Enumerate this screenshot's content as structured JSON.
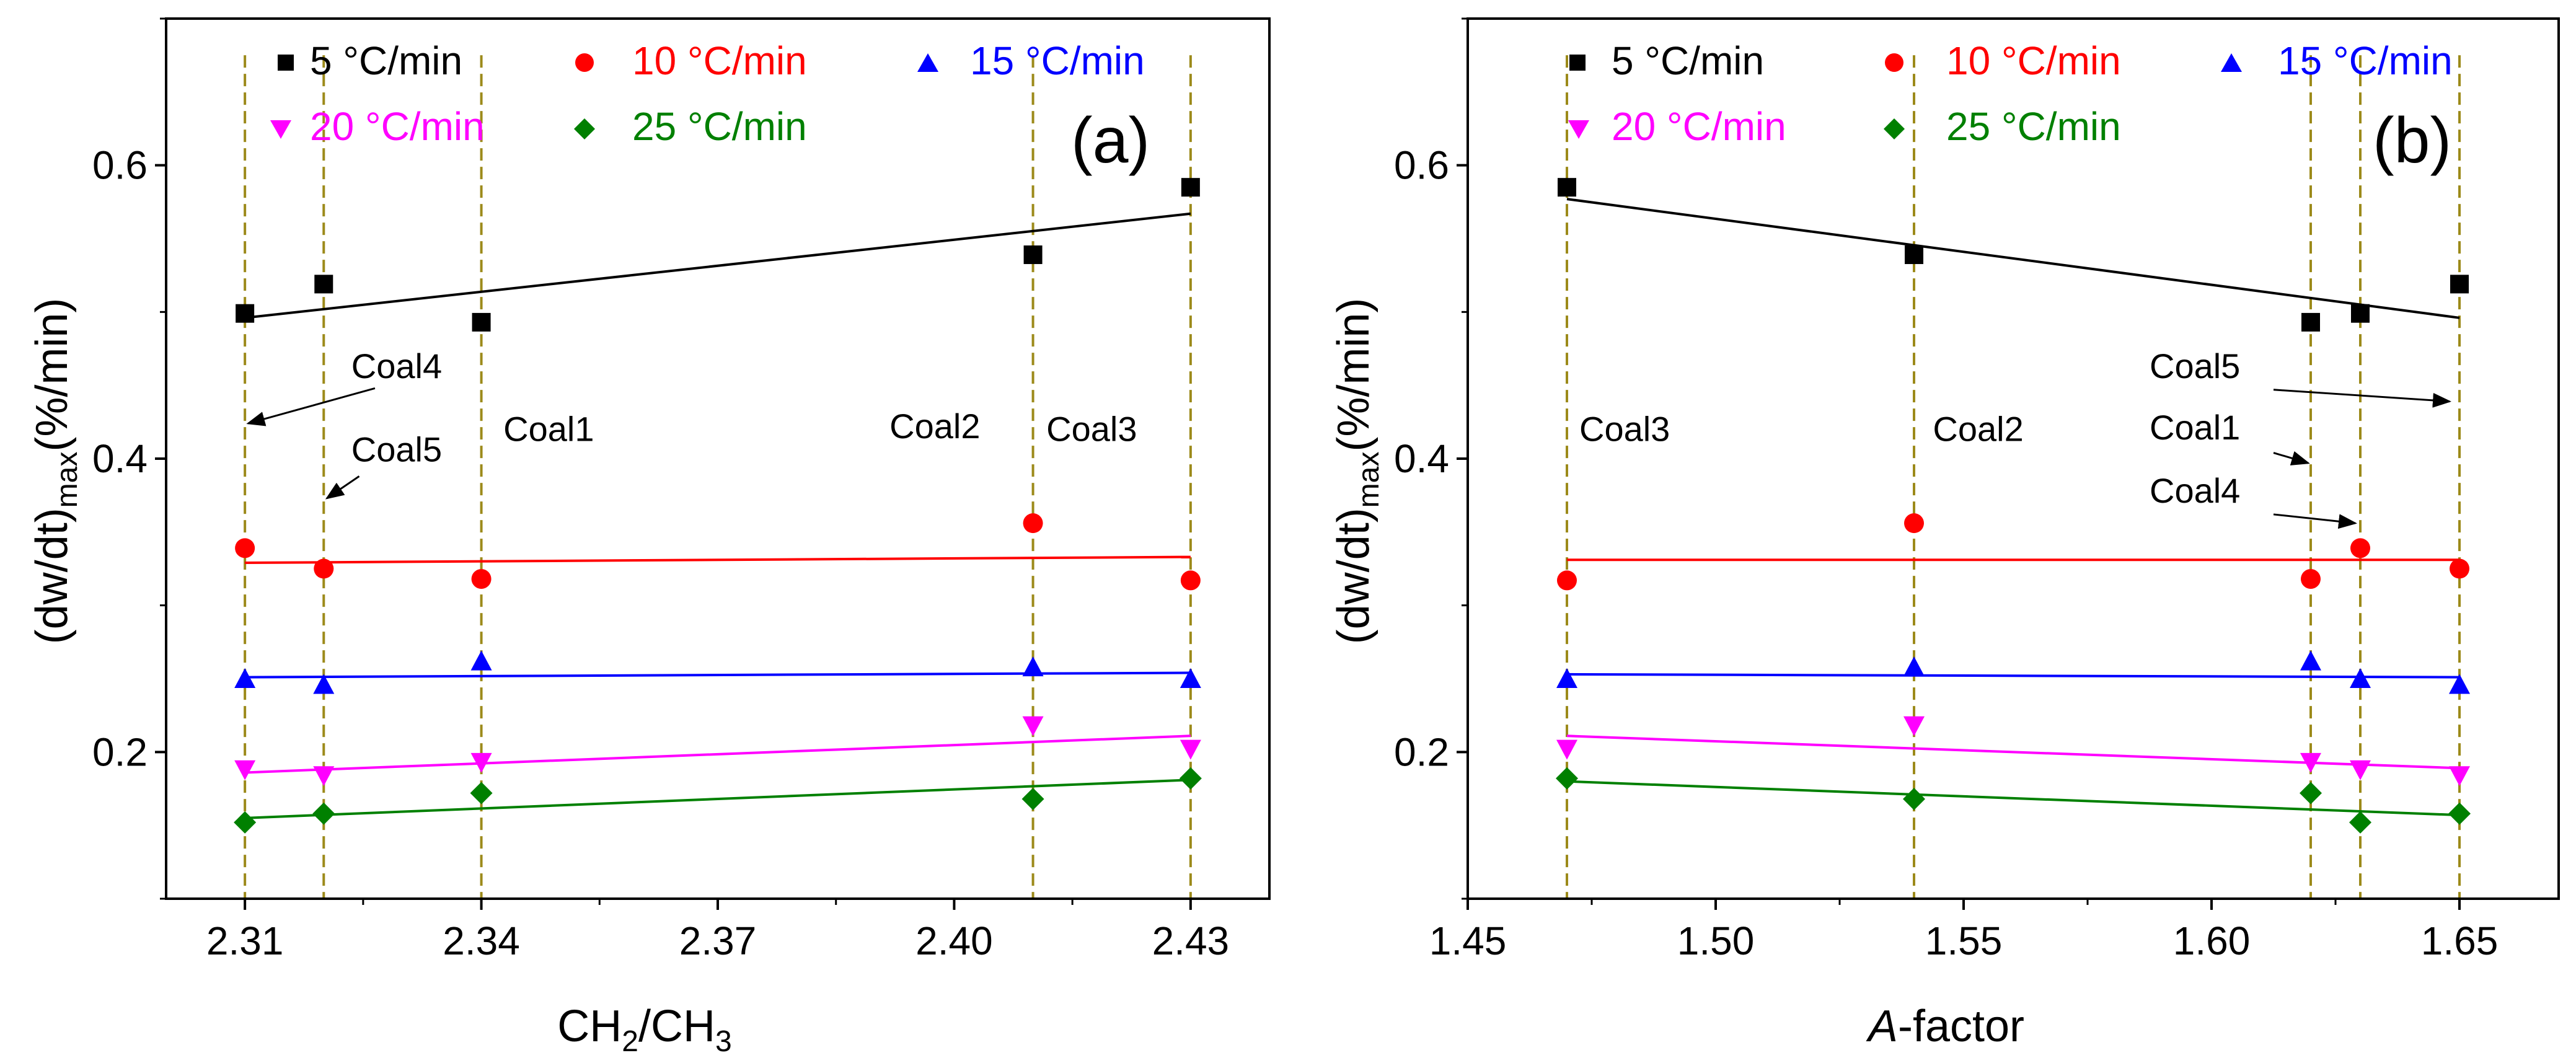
{
  "chart_data": [
    {
      "type": "scatter",
      "panel_label": "(a)",
      "xlabel": {
        "main": "CH",
        "sub1": "2",
        "mid": "/CH",
        "sub2": "3"
      },
      "ylabel": {
        "main": "(dw/dt)",
        "sub": "max",
        "tail": "(%/min)"
      },
      "xlim": [
        2.3,
        2.44
      ],
      "ylim": [
        0.1,
        0.7
      ],
      "xticks": [
        2.31,
        2.34,
        2.37,
        2.4,
        2.43
      ],
      "xtick_labels": [
        "2.31",
        "2.34",
        "2.37",
        "2.40",
        "2.43"
      ],
      "yticks": [
        0.2,
        0.4,
        0.6
      ],
      "ytick_labels": [
        "0.2",
        "0.4",
        "0.6"
      ],
      "ref_lines": [
        2.31,
        2.32,
        2.34,
        2.41,
        2.43
      ],
      "series": [
        {
          "name": "5 °C/min",
          "marker": "square",
          "color": "#000000",
          "x": [
            2.31,
            2.32,
            2.34,
            2.41,
            2.43
          ],
          "y": [
            0.499,
            0.519,
            0.493,
            0.539,
            0.585
          ],
          "fit": [
            [
              2.31,
              0.496
            ],
            [
              2.43,
              0.567
            ]
          ]
        },
        {
          "name": "10 °C/min",
          "marker": "circle",
          "color": "#ff0000",
          "x": [
            2.31,
            2.32,
            2.34,
            2.41,
            2.43
          ],
          "y": [
            0.339,
            0.325,
            0.318,
            0.356,
            0.317
          ],
          "fit": [
            [
              2.31,
              0.329
            ],
            [
              2.43,
              0.333
            ]
          ]
        },
        {
          "name": "15 °C/min",
          "marker": "triangle",
          "color": "#0000ff",
          "x": [
            2.31,
            2.32,
            2.34,
            2.41,
            2.43
          ],
          "y": [
            0.25,
            0.246,
            0.262,
            0.258,
            0.25
          ],
          "fit": [
            [
              2.31,
              0.251
            ],
            [
              2.43,
              0.254
            ]
          ]
        },
        {
          "name": "20 °C/min",
          "marker": "triangle-down",
          "color": "#ff00ff",
          "x": [
            2.31,
            2.32,
            2.34,
            2.41,
            2.43
          ],
          "y": [
            0.188,
            0.184,
            0.193,
            0.218,
            0.202
          ],
          "fit": [
            [
              2.31,
              0.186
            ],
            [
              2.43,
              0.211
            ]
          ]
        },
        {
          "name": "25 °C/min",
          "marker": "diamond",
          "color": "#008000",
          "x": [
            2.31,
            2.32,
            2.34,
            2.41,
            2.43
          ],
          "y": [
            0.152,
            0.158,
            0.172,
            0.168,
            0.182
          ],
          "fit": [
            [
              2.31,
              0.155
            ],
            [
              2.43,
              0.181
            ]
          ]
        }
      ],
      "annotations": [
        {
          "text": "Coal4",
          "tx": 2.3235,
          "ty": 0.455,
          "ax1": 2.3265,
          "ay1": 0.448,
          "ax2": 2.3104,
          "ay2": 0.424
        },
        {
          "text": "Coal5",
          "tx": 2.3235,
          "ty": 0.398,
          "ax1": 2.3245,
          "ay1": 0.388,
          "ax2": 2.3204,
          "ay2": 0.373
        },
        {
          "text": "Coal1",
          "tx": 2.3428,
          "ty": 0.412
        },
        {
          "text": "Coal2",
          "tx": 2.3918,
          "ty": 0.414
        },
        {
          "text": "Coal3",
          "tx": 2.4117,
          "ty": 0.412
        }
      ]
    },
    {
      "type": "scatter",
      "panel_label": "(b)",
      "xlabel": {
        "italic": "A",
        "rest": "-factor"
      },
      "ylabel": {
        "main": "(dw/dt)",
        "sub": "max",
        "tail": "(%/min)"
      },
      "xlim": [
        1.45,
        1.67
      ],
      "ylim": [
        0.1,
        0.7
      ],
      "xticks": [
        1.45,
        1.5,
        1.55,
        1.6,
        1.65
      ],
      "xtick_labels": [
        "1.45",
        "1.50",
        "1.55",
        "1.60",
        "1.65"
      ],
      "yticks": [
        0.2,
        0.4,
        0.6
      ],
      "ytick_labels": [
        "0.2",
        "0.4",
        "0.6"
      ],
      "ref_lines": [
        1.47,
        1.54,
        1.62,
        1.63,
        1.65
      ],
      "series": [
        {
          "name": "5 °C/min",
          "marker": "square",
          "color": "#000000",
          "x": [
            1.47,
            1.54,
            1.62,
            1.63,
            1.65
          ],
          "y": [
            0.585,
            0.539,
            0.493,
            0.499,
            0.519
          ],
          "fit": [
            [
              1.47,
              0.577
            ],
            [
              1.65,
              0.496
            ]
          ]
        },
        {
          "name": "10 °C/min",
          "marker": "circle",
          "color": "#ff0000",
          "x": [
            1.47,
            1.54,
            1.62,
            1.63,
            1.65
          ],
          "y": [
            0.317,
            0.356,
            0.318,
            0.339,
            0.325
          ],
          "fit": [
            [
              1.47,
              0.331
            ],
            [
              1.65,
              0.331
            ]
          ]
        },
        {
          "name": "15 °C/min",
          "marker": "triangle",
          "color": "#0000ff",
          "x": [
            1.47,
            1.54,
            1.62,
            1.63,
            1.65
          ],
          "y": [
            0.25,
            0.258,
            0.262,
            0.25,
            0.246
          ],
          "fit": [
            [
              1.47,
              0.253
            ],
            [
              1.65,
              0.251
            ]
          ]
        },
        {
          "name": "20 °C/min",
          "marker": "triangle-down",
          "color": "#ff00ff",
          "x": [
            1.47,
            1.54,
            1.62,
            1.63,
            1.65
          ],
          "y": [
            0.202,
            0.218,
            0.193,
            0.188,
            0.184
          ],
          "fit": [
            [
              1.47,
              0.211
            ],
            [
              1.65,
              0.189
            ]
          ]
        },
        {
          "name": "25 °C/min",
          "marker": "diamond",
          "color": "#008000",
          "x": [
            1.47,
            1.54,
            1.62,
            1.63,
            1.65
          ],
          "y": [
            0.182,
            0.168,
            0.172,
            0.152,
            0.158
          ],
          "fit": [
            [
              1.47,
              0.18
            ],
            [
              1.65,
              0.157
            ]
          ]
        }
      ],
      "annotations": [
        {
          "text": "Coal3",
          "tx": 1.4725,
          "ty": 0.412
        },
        {
          "text": "Coal2",
          "tx": 1.5438,
          "ty": 0.412
        },
        {
          "text": "Coal5",
          "tx": 1.5875,
          "ty": 0.455,
          "ax1": 1.6125,
          "ay1": 0.447,
          "ax2": 1.648,
          "ay2": 0.439
        },
        {
          "text": "Coal1",
          "tx": 1.5875,
          "ty": 0.413,
          "ax1": 1.6125,
          "ay1": 0.404,
          "ax2": 1.6195,
          "ay2": 0.397
        },
        {
          "text": "Coal4",
          "tx": 1.5875,
          "ty": 0.37,
          "ax1": 1.6125,
          "ay1": 0.362,
          "ax2": 1.629,
          "ay2": 0.356
        }
      ]
    }
  ]
}
